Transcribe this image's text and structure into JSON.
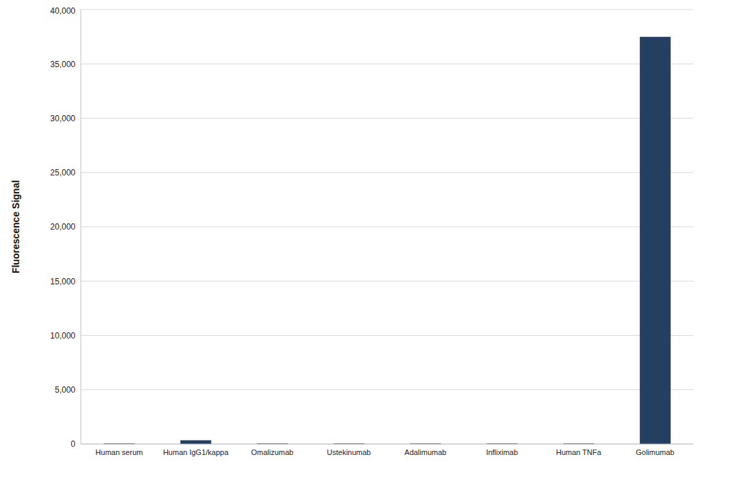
{
  "chart_data": {
    "type": "bar",
    "y_label": "Fluorescence Signal",
    "categories": [
      "Human serum",
      "Human IgG1/kappa",
      "Omalizumab",
      "Ustekinumab",
      "Adalimumab",
      "Infliximab",
      "Human TNFa",
      "Golimumab"
    ],
    "values": [
      60,
      350,
      60,
      60,
      60,
      60,
      60,
      37500
    ],
    "color": "#243f60",
    "ylim": [
      0,
      40000
    ],
    "yticks": [
      0,
      {
        "value": 5000,
        "label": "5,000"
      },
      {
        "value": 10000,
        "label": "10,000"
      },
      {
        "value": 15000,
        "label": "15,000"
      },
      {
        "value": 20000,
        "label": "20,000"
      },
      {
        "value": 25000,
        "label": "25,000"
      },
      {
        "value": 30000,
        "label": "30,000"
      },
      {
        "value": 35000,
        "label": "35,000"
      },
      {
        "value": 40000,
        "label": "40,000"
      }
    ],
    "grid": true
  }
}
